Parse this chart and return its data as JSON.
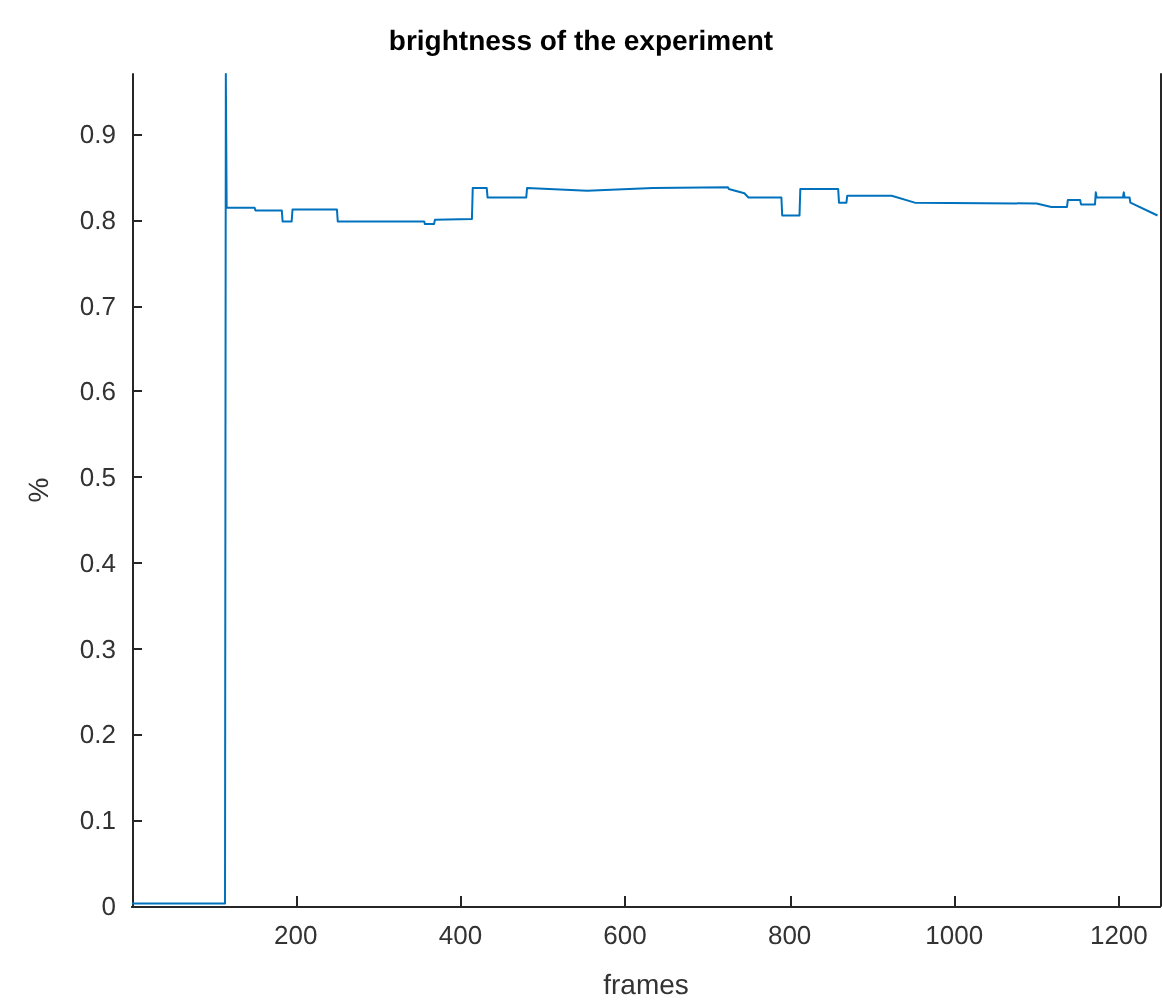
{
  "chart_data": {
    "type": "line",
    "title": "brightness of the experiment",
    "xlabel": "frames",
    "ylabel": "%",
    "x": [
      1,
      114,
      115,
      116,
      150,
      151,
      183,
      184,
      195,
      196,
      250,
      251,
      356,
      357,
      368,
      369,
      414,
      415,
      432,
      433,
      480,
      481,
      554,
      634,
      725,
      726,
      745,
      750,
      790,
      791,
      812,
      813,
      859,
      860,
      869,
      870,
      924,
      952,
      1100,
      1118,
      1137,
      1138,
      1153,
      1154,
      1171,
      1172,
      1173,
      1205,
      1206,
      1207,
      1213,
      1214,
      1247
    ],
    "series": [
      {
        "color": "#0072bd",
        "values": [
          0.003,
          0.003,
          0.97,
          0.814,
          0.814,
          0.811,
          0.811,
          0.798,
          0.798,
          0.812,
          0.812,
          0.798,
          0.798,
          0.795,
          0.795,
          0.8,
          0.801,
          0.837,
          0.837,
          0.826,
          0.826,
          0.837,
          0.834,
          0.837,
          0.838,
          0.836,
          0.831,
          0.826,
          0.826,
          0.805,
          0.805,
          0.836,
          0.836,
          0.82,
          0.82,
          0.828,
          0.828,
          0.82,
          0.819,
          0.815,
          0.815,
          0.823,
          0.823,
          0.818,
          0.818,
          0.832,
          0.826,
          0.826,
          0.832,
          0.826,
          0.826,
          0.82,
          0.805
        ]
      }
    ],
    "xlim": [
      1,
      1250
    ],
    "xticks": [
      200,
      400,
      600,
      800,
      1000,
      1200
    ],
    "ylim": [
      0,
      0.97
    ],
    "yticks": [
      0,
      0.1,
      0.2,
      0.3,
      0.4,
      0.5,
      0.6,
      0.7,
      0.8,
      0.9
    ],
    "grid": false,
    "marker": "none",
    "line_style": "solid"
  }
}
